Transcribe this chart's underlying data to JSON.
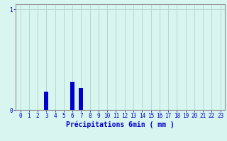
{
  "hours": [
    0,
    1,
    2,
    3,
    4,
    5,
    6,
    7,
    8,
    9,
    10,
    11,
    12,
    13,
    14,
    15,
    16,
    17,
    18,
    19,
    20,
    21,
    22,
    23
  ],
  "values": [
    0,
    0,
    0,
    0.18,
    0,
    0,
    0.28,
    0.22,
    0,
    0,
    0,
    0,
    0,
    0,
    0,
    0,
    0,
    0,
    0,
    0,
    0,
    0,
    0,
    0
  ],
  "bar_color": "#0000cc",
  "background_color": "#d8f5f0",
  "grid_color": "#b8d8d0",
  "axis_color": "#909090",
  "text_color": "#0000cc",
  "xlabel": "Précipitations 6min ( mm )",
  "ylim": [
    0,
    1.05
  ],
  "xlim": [
    -0.5,
    23.5
  ],
  "xlabel_fontsize": 7,
  "tick_fontsize": 5.5,
  "bar_width": 0.5
}
